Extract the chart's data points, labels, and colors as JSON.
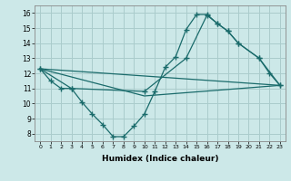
{
  "bg_color": "#cce8e8",
  "grid_color": "#aacccc",
  "line_color": "#1a6b6b",
  "line1_x": [
    0,
    1,
    2,
    3,
    4,
    5,
    6,
    7,
    8,
    9,
    10,
    11,
    12,
    13,
    14,
    15,
    16,
    17,
    18,
    19,
    21,
    23
  ],
  "line1_y": [
    12.3,
    11.5,
    11.0,
    11.0,
    10.1,
    9.3,
    8.6,
    7.8,
    7.8,
    8.5,
    9.3,
    10.8,
    12.4,
    13.1,
    14.9,
    15.9,
    15.9,
    15.3,
    14.8,
    14.0,
    13.0,
    11.2
  ],
  "line2_x": [
    0,
    3,
    10,
    14,
    16,
    17,
    18,
    19,
    21,
    22,
    23
  ],
  "line2_y": [
    12.3,
    11.0,
    10.8,
    13.0,
    15.85,
    15.3,
    14.8,
    14.0,
    13.0,
    12.0,
    11.2
  ],
  "line3_x": [
    0,
    23
  ],
  "line3_y": [
    12.3,
    11.2
  ],
  "line4_x": [
    0,
    10,
    23
  ],
  "line4_y": [
    12.3,
    10.5,
    11.2
  ],
  "xlabel": "Humidex (Indice chaleur)",
  "xlim": [
    -0.5,
    23.5
  ],
  "ylim": [
    7.5,
    16.5
  ],
  "yticks": [
    8,
    9,
    10,
    11,
    12,
    13,
    14,
    15,
    16
  ],
  "xticks": [
    0,
    1,
    2,
    3,
    4,
    5,
    6,
    7,
    8,
    9,
    10,
    11,
    12,
    13,
    14,
    15,
    16,
    17,
    18,
    19,
    20,
    21,
    22,
    23
  ]
}
